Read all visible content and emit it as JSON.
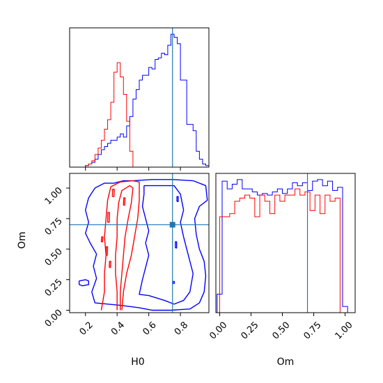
{
  "chart_data": {
    "type": "corner",
    "parameters": [
      "H0",
      "Om"
    ],
    "truth": {
      "H0": 0.75,
      "Om": 0.7
    },
    "colors": {
      "series_a": "#0000ff",
      "series_b": "#ff0000",
      "truth": "#1f77b4",
      "axes": "#000000"
    },
    "panels": [
      {
        "id": "hist-H0",
        "type": "histogram-step",
        "xlim": [
          0.1,
          0.98
        ],
        "xticks": [
          0.2,
          0.4,
          0.6,
          0.8
        ],
        "show_tick_labels": false,
        "truth_x": 0.75,
        "series": [
          {
            "color": "blue",
            "edges": [
              0.1,
              0.12,
              0.14,
              0.16,
              0.18,
              0.2,
              0.22,
              0.24,
              0.26,
              0.28,
              0.3,
              0.32,
              0.34,
              0.36,
              0.38,
              0.4,
              0.42,
              0.44,
              0.46,
              0.48,
              0.5,
              0.52,
              0.54,
              0.56,
              0.58,
              0.6,
              0.62,
              0.64,
              0.66,
              0.68,
              0.7,
              0.72,
              0.74,
              0.76,
              0.78,
              0.8,
              0.82,
              0.84,
              0.86,
              0.88,
              0.9,
              0.92,
              0.94,
              0.96,
              0.98
            ],
            "values": [
              0,
              0,
              0,
              0,
              0,
              0.01,
              0.02,
              0.03,
              0.05,
              0.08,
              0.11,
              0.13,
              0.15,
              0.17,
              0.17,
              0.19,
              0.21,
              0.19,
              0.26,
              0.32,
              0.43,
              0.49,
              0.55,
              0.58,
              0.58,
              0.63,
              0.62,
              0.68,
              0.69,
              0.72,
              0.71,
              0.77,
              0.84,
              0.82,
              0.78,
              0.55,
              0.55,
              0.27,
              0.27,
              0.23,
              0.1,
              0.05,
              0.02,
              0.01
            ]
          },
          {
            "color": "red",
            "edges": [
              0.18,
              0.2,
              0.22,
              0.24,
              0.26,
              0.28,
              0.3,
              0.32,
              0.34,
              0.36,
              0.38,
              0.4,
              0.42,
              0.44,
              0.46,
              0.48,
              0.5,
              0.52
            ],
            "values": [
              0,
              0.01,
              0.02,
              0.04,
              0.08,
              0.12,
              0.17,
              0.24,
              0.3,
              0.41,
              0.6,
              0.66,
              0.57,
              0.46,
              0.29,
              0.1,
              0
            ]
          }
        ]
      },
      {
        "id": "contour-H0-Om",
        "type": "contour",
        "xlim": [
          0.1,
          0.98
        ],
        "ylim": [
          -0.02,
          1.12
        ],
        "xticks": [
          0.2,
          0.4,
          0.6,
          0.8
        ],
        "yticks": [
          0.0,
          0.25,
          0.5,
          0.75,
          1.0
        ],
        "xticklabels": [
          "0.2",
          "0.4",
          "0.6",
          "0.8"
        ],
        "yticklabels": [
          "0.00",
          "0.25",
          "0.50",
          "0.75",
          "1.00"
        ],
        "ylabel": "Om",
        "xlabel": "H0",
        "truth": [
          0.75,
          0.7
        ],
        "series": [
          {
            "color": "blue",
            "contours": [
              [
                [
                  0.5,
                  1.06
                ],
                [
                  0.62,
                  1.07
                ],
                [
                  0.75,
                  1.07
                ],
                [
                  0.88,
                  1.06
                ],
                [
                  0.96,
                  1.02
                ],
                [
                  0.97,
                  0.9
                ],
                [
                  0.92,
                  0.85
                ],
                [
                  0.89,
                  0.75
                ],
                [
                  0.9,
                  0.62
                ],
                [
                  0.92,
                  0.5
                ],
                [
                  0.95,
                  0.4
                ],
                [
                  0.96,
                  0.28
                ],
                [
                  0.95,
                  0.15
                ],
                [
                  0.92,
                  0.06
                ],
                [
                  0.86,
                  0.01
                ],
                [
                  0.74,
                  0.0
                ],
                [
                  0.62,
                  0.0
                ],
                [
                  0.54,
                  0.02
                ],
                [
                  0.42,
                  0.04
                ],
                [
                  0.34,
                  0.05
                ],
                [
                  0.26,
                  0.06
                ],
                [
                  0.24,
                  0.15
                ],
                [
                  0.27,
                  0.26
                ],
                [
                  0.25,
                  0.36
                ],
                [
                  0.27,
                  0.46
                ],
                [
                  0.23,
                  0.55
                ],
                [
                  0.2,
                  0.63
                ],
                [
                  0.22,
                  0.72
                ],
                [
                  0.2,
                  0.82
                ],
                [
                  0.22,
                  0.92
                ],
                [
                  0.26,
                  1.0
                ],
                [
                  0.32,
                  1.04
                ],
                [
                  0.38,
                  1.04
                ],
                [
                  0.44,
                  1.06
                ],
                [
                  0.5,
                  1.06
                ]
              ],
              [
                [
                  0.57,
                  1.02
                ],
                [
                  0.66,
                  1.02
                ],
                [
                  0.76,
                  1.02
                ],
                [
                  0.8,
                  0.95
                ],
                [
                  0.82,
                  0.82
                ],
                [
                  0.8,
                  0.72
                ],
                [
                  0.82,
                  0.6
                ],
                [
                  0.85,
                  0.45
                ],
                [
                  0.88,
                  0.3
                ],
                [
                  0.86,
                  0.15
                ],
                [
                  0.82,
                  0.08
                ],
                [
                  0.76,
                  0.05
                ],
                [
                  0.7,
                  0.08
                ],
                [
                  0.6,
                  0.12
                ],
                [
                  0.54,
                  0.13
                ],
                [
                  0.56,
                  0.25
                ],
                [
                  0.58,
                  0.35
                ],
                [
                  0.6,
                  0.45
                ],
                [
                  0.58,
                  0.55
                ],
                [
                  0.6,
                  0.65
                ],
                [
                  0.58,
                  0.75
                ],
                [
                  0.56,
                  0.85
                ],
                [
                  0.57,
                  0.95
                ],
                [
                  0.57,
                  1.02
                ]
              ],
              [
                [
                  0.16,
                  0.24
                ],
                [
                  0.2,
                  0.25
                ],
                [
                  0.22,
                  0.24
                ],
                [
                  0.22,
                  0.21
                ],
                [
                  0.18,
                  0.2
                ],
                [
                  0.16,
                  0.21
                ],
                [
                  0.16,
                  0.24
                ]
              ],
              [
                [
                  0.752,
                  0.22
                ],
                [
                  0.762,
                  0.22
                ],
                [
                  0.762,
                  0.235
                ],
                [
                  0.752,
                  0.235
                ],
                [
                  0.752,
                  0.22
                ]
              ],
              [
                [
                  0.768,
                  0.51
                ],
                [
                  0.776,
                  0.51
                ],
                [
                  0.776,
                  0.56
                ],
                [
                  0.768,
                  0.56
                ],
                [
                  0.768,
                  0.51
                ]
              ],
              [
                [
                  0.778,
                  0.89
                ],
                [
                  0.786,
                  0.89
                ],
                [
                  0.786,
                  0.93
                ],
                [
                  0.778,
                  0.93
                ],
                [
                  0.778,
                  0.89
                ]
              ]
            ]
          },
          {
            "color": "red",
            "contours": [
              [
                [
                  0.3,
                  0.0
                ],
                [
                  0.32,
                  0.15
                ],
                [
                  0.32,
                  0.3
                ],
                [
                  0.33,
                  0.45
                ],
                [
                  0.32,
                  0.6
                ],
                [
                  0.33,
                  0.75
                ],
                [
                  0.34,
                  0.9
                ],
                [
                  0.36,
                  1.01
                ],
                [
                  0.42,
                  1.05
                ],
                [
                  0.5,
                  1.06
                ],
                [
                  0.54,
                  1.05
                ],
                [
                  0.54,
                  0.9
                ],
                [
                  0.53,
                  0.75
                ],
                [
                  0.51,
                  0.6
                ],
                [
                  0.49,
                  0.45
                ],
                [
                  0.46,
                  0.3
                ],
                [
                  0.44,
                  0.15
                ],
                [
                  0.43,
                  0.0
                ]
              ],
              [
                [
                  0.4,
                  0.0
                ],
                [
                  0.4,
                  0.15
                ],
                [
                  0.39,
                  0.3
                ],
                [
                  0.39,
                  0.45
                ],
                [
                  0.4,
                  0.6
                ],
                [
                  0.4,
                  0.75
                ],
                [
                  0.41,
                  0.88
                ],
                [
                  0.43,
                  0.98
                ],
                [
                  0.48,
                  1.02
                ],
                [
                  0.5,
                  1.0
                ],
                [
                  0.49,
                  0.88
                ],
                [
                  0.47,
                  0.75
                ],
                [
                  0.45,
                  0.6
                ],
                [
                  0.44,
                  0.45
                ],
                [
                  0.43,
                  0.3
                ],
                [
                  0.42,
                  0.15
                ],
                [
                  0.42,
                  0.0
                ]
              ],
              [
                [
                  0.37,
                  0.93
                ],
                [
                  0.38,
                  0.93
                ],
                [
                  0.382,
                  0.99
                ],
                [
                  0.372,
                  0.99
                ],
                [
                  0.37,
                  0.93
                ]
              ],
              [
                [
                  0.34,
                  0.72
                ],
                [
                  0.35,
                  0.72
                ],
                [
                  0.352,
                  0.8
                ],
                [
                  0.342,
                  0.8
                ],
                [
                  0.34,
                  0.72
                ]
              ],
              [
                [
                  0.33,
                  0.45
                ],
                [
                  0.338,
                  0.45
                ],
                [
                  0.34,
                  0.52
                ],
                [
                  0.332,
                  0.52
                ],
                [
                  0.33,
                  0.45
                ]
              ],
              [
                [
                  0.35,
                  0.35
                ],
                [
                  0.358,
                  0.35
                ],
                [
                  0.36,
                  0.4
                ],
                [
                  0.352,
                  0.4
                ],
                [
                  0.35,
                  0.35
                ]
              ],
              [
                [
                  0.44,
                  0.86
                ],
                [
                  0.448,
                  0.86
                ],
                [
                  0.45,
                  0.92
                ],
                [
                  0.442,
                  0.92
                ],
                [
                  0.44,
                  0.86
                ]
              ],
              [
                [
                  0.3,
                  0.56
                ],
                [
                  0.308,
                  0.56
                ],
                [
                  0.31,
                  0.6
                ],
                [
                  0.302,
                  0.6
                ],
                [
                  0.3,
                  0.56
                ]
              ]
            ]
          }
        ]
      },
      {
        "id": "hist-Om",
        "type": "histogram-step",
        "xlim": [
          -0.03,
          1.08
        ],
        "xticks": [
          0.0,
          0.25,
          0.5,
          0.75,
          1.0
        ],
        "xticklabels": [
          "0.00",
          "0.25",
          "0.50",
          "0.75",
          "1.00"
        ],
        "show_tick_labels": true,
        "xlabel": "Om",
        "truth_x": 0.7,
        "series": [
          {
            "color": "blue",
            "edges": [
              -0.02,
              0.02,
              0.06,
              0.1,
              0.14,
              0.18,
              0.22,
              0.26,
              0.3,
              0.34,
              0.38,
              0.42,
              0.46,
              0.5,
              0.54,
              0.58,
              0.62,
              0.66,
              0.7,
              0.74,
              0.78,
              0.82,
              0.86,
              0.9,
              0.94,
              0.98,
              1.02,
              1.06
            ],
            "values": [
              0.12,
              0.85,
              0.8,
              0.83,
              0.86,
              0.8,
              0.8,
              0.78,
              0.76,
              0.77,
              0.76,
              0.78,
              0.8,
              0.77,
              0.8,
              0.84,
              0.82,
              0.84,
              0.79,
              0.85,
              0.86,
              0.82,
              0.85,
              0.79,
              0.81,
              0.04,
              0
            ]
          },
          {
            "color": "red",
            "edges": [
              0.0,
              0.04,
              0.08,
              0.12,
              0.16,
              0.2,
              0.24,
              0.28,
              0.32,
              0.36,
              0.4,
              0.44,
              0.48,
              0.52,
              0.56,
              0.6,
              0.64,
              0.68,
              0.72,
              0.76,
              0.8,
              0.84,
              0.88,
              0.92,
              0.96,
              1.0
            ],
            "values": [
              0.62,
              0.62,
              0.64,
              0.72,
              0.74,
              0.76,
              0.74,
              0.62,
              0.76,
              0.72,
              0.64,
              0.76,
              0.72,
              0.76,
              0.76,
              0.8,
              0.76,
              0.78,
              0.66,
              0.76,
              0.64,
              0.76,
              0.72,
              0.74,
              0.0
            ]
          }
        ]
      }
    ]
  }
}
